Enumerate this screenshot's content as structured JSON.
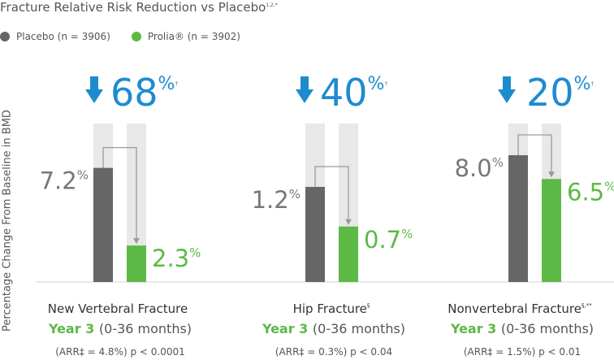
{
  "title": "Fracture Relative Risk Reduction vs Placebo",
  "title_marks": "1,2,*",
  "legend": [
    {
      "label": "Placebo (n = 3906)",
      "color": "#666666"
    },
    {
      "label": "Prolia® (n = 3902)",
      "color": "#5cb946"
    }
  ],
  "colors": {
    "placebo": "#666666",
    "prolia": "#5cb946",
    "track": "#e8e8e8",
    "accent": "#1e8bd0",
    "text": "#555555"
  },
  "chart_data": {
    "type": "bar",
    "ylabel": "Percentage Change From Baseline in BMD",
    "series": [
      {
        "name": "Placebo (n = 3906)",
        "values": [
          7.2,
          1.2,
          8.0
        ]
      },
      {
        "name": "Prolia® (n = 3902)",
        "values": [
          2.3,
          0.7,
          6.5
        ]
      }
    ],
    "groups": [
      {
        "name": "New Vertebral Fracture",
        "name_mark": "",
        "period_label": "Year 3",
        "period_range": "(0-36 months)",
        "stats": "(ARR‡ = 4.8%) p < 0.0001",
        "reduction": "68",
        "reduction_mark": "†",
        "placebo": 7.2,
        "prolia": 2.3,
        "track_max": 10,
        "placebo_label": "7.2",
        "prolia_label": "2.3"
      },
      {
        "name": "Hip Fracture",
        "name_mark": "§",
        "period_label": "Year 3",
        "period_range": "(0-36 months)",
        "stats": "(ARR‡ = 0.3%) p < 0.04",
        "reduction": "40",
        "reduction_mark": "†",
        "placebo": 1.2,
        "prolia": 0.7,
        "track_max": 2,
        "placebo_label": "1.2",
        "prolia_label": "0.7"
      },
      {
        "name": "Nonvertebral Fracture",
        "name_mark": "§,**",
        "period_label": "Year 3",
        "period_range": "(0-36 months)",
        "stats": "(ARR‡ = 1.5%) p < 0.01",
        "reduction": "20",
        "reduction_mark": "†",
        "placebo": 8.0,
        "prolia": 6.5,
        "track_max": 10,
        "placebo_label": "8.0",
        "prolia_label": "6.5"
      }
    ]
  }
}
